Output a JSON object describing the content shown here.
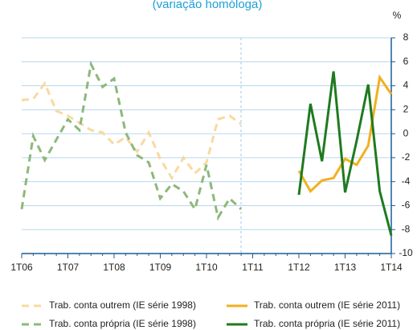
{
  "chart_data": {
    "type": "line",
    "subtitle": "(variação homóloga)",
    "y_unit": "%",
    "categories": [
      "1T06",
      null,
      null,
      null,
      "1T07",
      null,
      null,
      null,
      "1T08",
      null,
      null,
      null,
      "1T09",
      null,
      null,
      null,
      "1T10",
      null,
      null,
      null,
      "1T11",
      null,
      null,
      null,
      "1T12",
      null,
      null,
      null,
      "1T13",
      null,
      null,
      null,
      "1T14"
    ],
    "series": [
      {
        "name": "Trab. conta outrem (IE série 1998)",
        "color": "#f9d9a0",
        "dashed": true,
        "values": [
          2.8,
          2.9,
          4.2,
          1.9,
          1.5,
          0.9,
          0.3,
          0.1,
          -0.9,
          -0.3,
          -1.5,
          0.1,
          -2.1,
          -3.7,
          -2.0,
          -3.3,
          -2.4,
          1.2,
          1.5,
          0.8,
          null,
          null,
          null,
          null,
          null,
          null,
          null,
          null,
          null,
          null,
          null,
          null,
          null
        ]
      },
      {
        "name": "Trab. conta própria (IE série 1998)",
        "color": "#8db87a",
        "dashed": true,
        "values": [
          -6.3,
          -0.2,
          -2.2,
          -0.5,
          1.2,
          0.3,
          5.8,
          3.9,
          4.6,
          0.1,
          -1.8,
          -2.4,
          -5.4,
          -4.2,
          -4.8,
          -6.3,
          -2.6,
          -7.0,
          -5.4,
          -6.3,
          null,
          null,
          null,
          null,
          null,
          null,
          null,
          null,
          null,
          null,
          null,
          null,
          null
        ]
      },
      {
        "name": "Trab. conta outrem (IE série 2011)",
        "color": "#f2b01e",
        "dashed": false,
        "values": [
          null,
          null,
          null,
          null,
          null,
          null,
          null,
          null,
          null,
          null,
          null,
          null,
          null,
          null,
          null,
          null,
          null,
          null,
          null,
          null,
          null,
          null,
          null,
          null,
          -3.1,
          -4.8,
          -3.9,
          -3.7,
          -2.1,
          -2.6,
          -1.0,
          4.7,
          3.3
        ]
      },
      {
        "name": "Trab. conta própria (IE série 2011)",
        "color": "#1f7a1f",
        "dashed": false,
        "values": [
          null,
          null,
          null,
          null,
          null,
          null,
          null,
          null,
          null,
          null,
          null,
          null,
          null,
          null,
          null,
          null,
          null,
          null,
          null,
          null,
          null,
          null,
          null,
          null,
          -5.1,
          2.5,
          -2.3,
          5.2,
          -4.9,
          -0.6,
          4.1,
          -4.8,
          -8.5
        ]
      }
    ],
    "ylim": [
      -10,
      8
    ],
    "yticks": [
      -10,
      -8,
      -6,
      -4,
      -2,
      0,
      2,
      4,
      6,
      8
    ],
    "grid": true
  }
}
